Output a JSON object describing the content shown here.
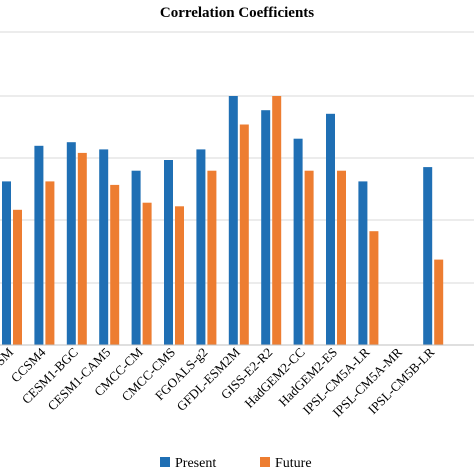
{
  "chart_data": {
    "type": "bar",
    "title": "Correlation Coefficients",
    "xlabel": "",
    "ylabel": "",
    "ylim": [
      0.3,
      1.0
    ],
    "grid": true,
    "legend_position": "bottom",
    "categories": [
      "BNU-ESM",
      "CCSM4",
      "CESM1-BGC",
      "CESM1-CAM5",
      "CMCC-CM",
      "CMCC-CMS",
      "FGOALS-g2",
      "GFDL-ESM2M",
      "GISS-E2-R2",
      "HadGEM2-CC",
      "HadGEM2-ES",
      "IPSL-CM5A-LR",
      "IPSL-CM5A-MR",
      "IPSL-CM5B-LR"
    ],
    "series": [
      {
        "name": "Present",
        "color": "#1f6fb4",
        "values": [
          0.76,
          0.86,
          0.87,
          0.85,
          0.79,
          0.82,
          0.85,
          1.0,
          0.96,
          0.88,
          0.95,
          0.76,
          null,
          0.8
        ]
      },
      {
        "name": "Future",
        "color": "#ed7d31",
        "values": [
          0.68,
          0.76,
          0.84,
          0.75,
          0.7,
          0.69,
          0.79,
          0.92,
          1.0,
          0.79,
          0.79,
          0.62,
          null,
          0.54
        ]
      }
    ]
  }
}
